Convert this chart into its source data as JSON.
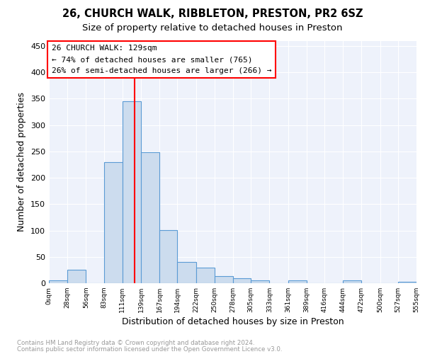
{
  "title_line1": "26, CHURCH WALK, RIBBLETON, PRESTON, PR2 6SZ",
  "title_line2": "Size of property relative to detached houses in Preston",
  "xlabel": "Distribution of detached houses by size in Preston",
  "ylabel": "Number of detached properties",
  "footer_line1": "Contains HM Land Registry data © Crown copyright and database right 2024.",
  "footer_line2": "Contains public sector information licensed under the Open Government Licence v3.0.",
  "bar_edges": [
    0,
    28,
    56,
    83,
    111,
    139,
    167,
    194,
    222,
    250,
    278,
    305,
    333,
    361,
    389,
    416,
    444,
    472,
    500,
    527,
    555
  ],
  "bar_heights": [
    5,
    25,
    0,
    230,
    345,
    248,
    101,
    40,
    30,
    14,
    10,
    5,
    0,
    5,
    0,
    0,
    5,
    0,
    0,
    3
  ],
  "bar_color": "#ccdcee",
  "bar_edgecolor": "#5b9bd5",
  "annotation_text_line1": "26 CHURCH WALK: 129sqm",
  "annotation_text_line2": "← 74% of detached houses are smaller (765)",
  "annotation_text_line3": "26% of semi-detached houses are larger (266) →",
  "vline_x": 129,
  "vline_color": "red",
  "ylim": [
    0,
    460
  ],
  "xlim": [
    0,
    555
  ],
  "background_color": "#eef2fb",
  "tick_labels": [
    "0sqm",
    "28sqm",
    "56sqm",
    "83sqm",
    "111sqm",
    "139sqm",
    "167sqm",
    "194sqm",
    "222sqm",
    "250sqm",
    "278sqm",
    "305sqm",
    "333sqm",
    "361sqm",
    "389sqm",
    "416sqm",
    "444sqm",
    "472sqm",
    "500sqm",
    "527sqm",
    "555sqm"
  ],
  "tick_positions": [
    0,
    28,
    56,
    83,
    111,
    139,
    167,
    194,
    222,
    250,
    278,
    305,
    333,
    361,
    389,
    416,
    444,
    472,
    500,
    527,
    555
  ],
  "yticks": [
    0,
    50,
    100,
    150,
    200,
    250,
    300,
    350,
    400,
    450
  ]
}
